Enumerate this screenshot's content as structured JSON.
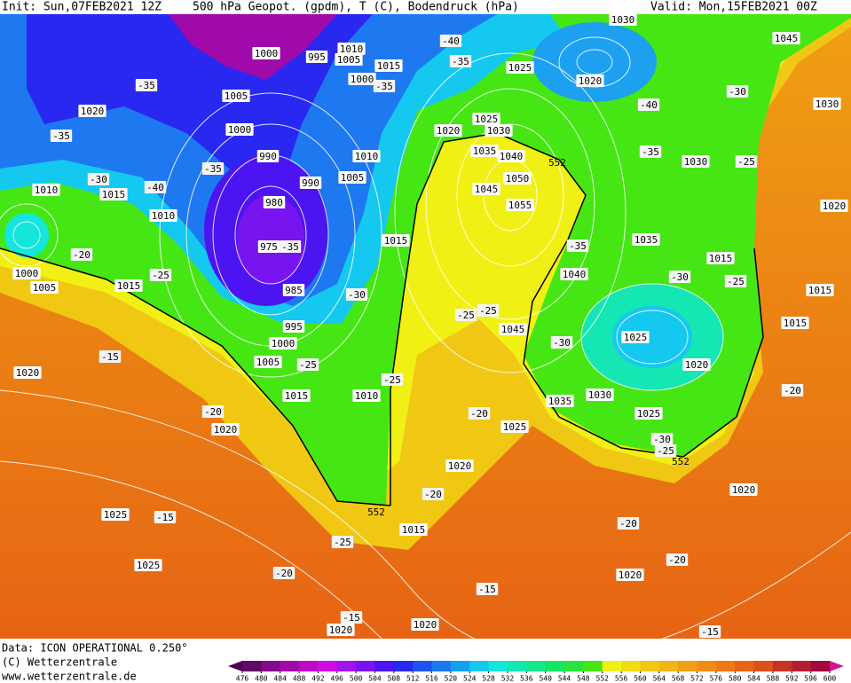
{
  "header": {
    "init": "Init: Sun,07FEB2021 12Z",
    "title": "500 hPa Geopot. (gpdm), T (C), Bodendruck (hPa)",
    "valid": "Valid: Mon,15FEB2021 00Z"
  },
  "map": {
    "pressure_labels": [
      "1030",
      "1045",
      "1000",
      "995",
      "1010",
      "1005",
      "1015",
      "1025",
      "1000",
      "1020",
      "1005",
      "1020",
      "1030",
      "1025",
      "1000",
      "1020",
      "1030",
      "1035",
      "1040",
      "990",
      "1010",
      "1030",
      "1005",
      "1050",
      "990",
      "1045",
      "1010",
      "1015",
      "980",
      "1055",
      "1020",
      "1010",
      "1035",
      "1015",
      "975",
      "1015",
      "1000",
      "1040",
      "1005",
      "1015",
      "985",
      "1015",
      "1015",
      "995",
      "1045",
      "1025",
      "1000",
      "1005",
      "1020",
      "1020",
      "1015",
      "1010",
      "1030",
      "1035",
      "1025",
      "1025",
      "1020",
      "1020",
      "1020",
      "1025",
      "1015",
      "1025",
      "1020",
      "1020",
      "1020"
    ],
    "temperature_labels": [
      "-40",
      "-35",
      "-35",
      "-35",
      "-30",
      "-40",
      "-35",
      "-35",
      "-25",
      "-35",
      "-30",
      "-40",
      "-35",
      "-20",
      "-35",
      "-25",
      "-30",
      "-25",
      "-30",
      "-25",
      "-25",
      "-30",
      "-15",
      "-25",
      "-25",
      "-20",
      "-20",
      "-20",
      "-30",
      "-25",
      "-20",
      "-15",
      "-20",
      "-25",
      "-20",
      "-20",
      "-15",
      "-15",
      "-15"
    ],
    "geopotential_labels": [
      "552",
      "552",
      "552"
    ]
  },
  "footer": {
    "data": "Data: ICON OPERATIONAL 0.250°",
    "copyright": "(C) Wetterzentrale",
    "url": "www.wetterzentrale.de"
  },
  "colorbar": {
    "ticks": [
      476,
      480,
      484,
      488,
      492,
      496,
      500,
      504,
      508,
      512,
      516,
      520,
      524,
      528,
      532,
      536,
      540,
      544,
      548,
      552,
      556,
      560,
      564,
      568,
      572,
      576,
      580,
      584,
      588,
      592,
      596,
      600
    ],
    "colors": [
      "#4b0050",
      "#5f0a64",
      "#820a8c",
      "#a00aaa",
      "#be0ac8",
      "#d20ae6",
      "#a014f0",
      "#7814f0",
      "#4b14f0",
      "#2828f0",
      "#1e50f0",
      "#1e78f0",
      "#14a0f0",
      "#14c8f0",
      "#14e6dc",
      "#14e6b4",
      "#14e68c",
      "#14e664",
      "#28e63c",
      "#46e614",
      "#f0f014",
      "#f0dc14",
      "#f0c814",
      "#f0b414",
      "#f0a014",
      "#f08c14",
      "#f07814",
      "#e66414",
      "#dc501e",
      "#c83228",
      "#b41e32",
      "#a00a3c",
      "#d2148c"
    ]
  }
}
